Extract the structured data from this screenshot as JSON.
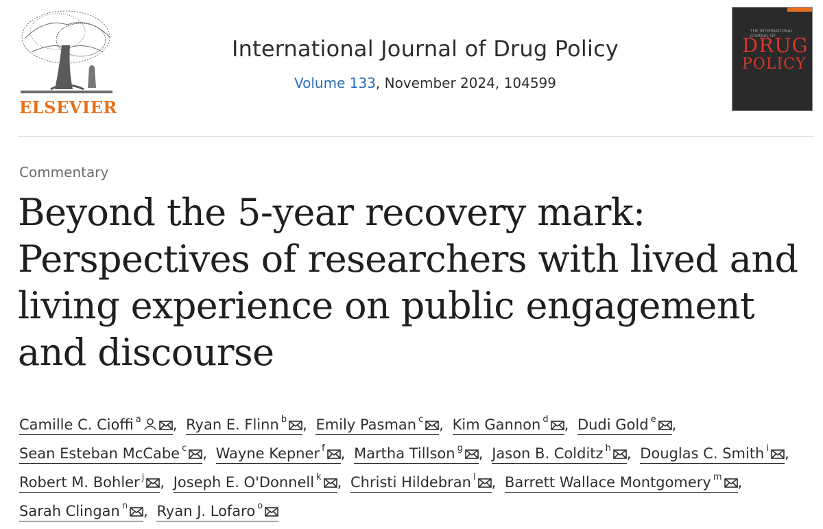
{
  "publisher": {
    "wordmark": "ELSEVIER"
  },
  "journal": {
    "title": "International Journal of Drug Policy",
    "volume_link": "Volume 133",
    "issue_rest": ", November 2024, 104599",
    "cover_small": "THE INTERNATIONAL JOURNAL OF",
    "cover_line1": "DRUG",
    "cover_line2": "POLICY"
  },
  "article": {
    "type": "Commentary",
    "title": "Beyond the 5-year recovery mark: Perspectives of researchers with lived and living experience on public engagement and discourse"
  },
  "colors": {
    "brand": "#e9711c",
    "link": "#2a6ebb",
    "cover_title": "#d9362b"
  },
  "icons": {
    "mail": "envelope-icon",
    "corresponding": "person-icon"
  },
  "authors": [
    {
      "name": "Camille C. Cioffi",
      "sup": "a",
      "corresponding": true
    },
    {
      "name": "Ryan E. Flinn",
      "sup": "b"
    },
    {
      "name": "Emily Pasman",
      "sup": "c"
    },
    {
      "name": "Kim Gannon",
      "sup": "d"
    },
    {
      "name": "Dudi Gold",
      "sup": "e"
    },
    {
      "name": "Sean Esteban McCabe",
      "sup": "c"
    },
    {
      "name": "Wayne Kepner",
      "sup": "f"
    },
    {
      "name": "Martha Tillson",
      "sup": "g"
    },
    {
      "name": "Jason B. Colditz",
      "sup": "h"
    },
    {
      "name": "Douglas C. Smith",
      "sup": "i"
    },
    {
      "name": "Robert M. Bohler",
      "sup": "j"
    },
    {
      "name": "Joseph E. O'Donnell",
      "sup": "k"
    },
    {
      "name": "Christi Hildebran",
      "sup": "l"
    },
    {
      "name": "Barrett Wallace Montgomery",
      "sup": "m"
    },
    {
      "name": "Sarah Clingan",
      "sup": "n"
    },
    {
      "name": "Ryan J. Lofaro",
      "sup": "o"
    }
  ]
}
